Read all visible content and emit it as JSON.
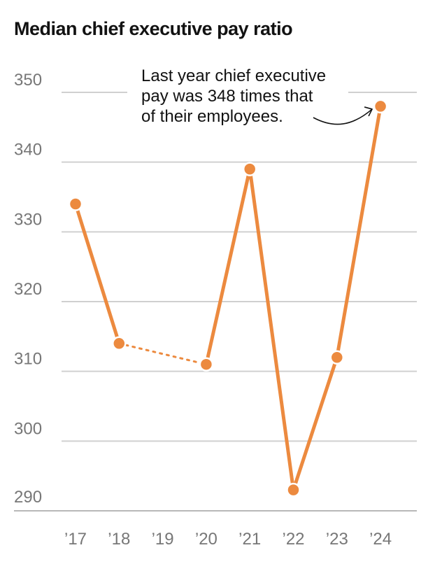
{
  "chart_data": {
    "type": "line",
    "title": "Median chief executive pay ratio",
    "xlabel": "",
    "ylabel": "",
    "categories": [
      "’17",
      "’18",
      "’19",
      "’20",
      "’21",
      "’22",
      "’23",
      "’24"
    ],
    "series": [
      {
        "values": [
          334,
          314,
          null,
          311,
          339,
          293,
          312,
          348
        ],
        "color": "#ec8a3f"
      }
    ],
    "gap_bridge": {
      "from": "’18",
      "to": "’20",
      "style": "dotted"
    },
    "ylim": [
      290,
      350
    ],
    "yticks": [
      290,
      300,
      310,
      320,
      330,
      340,
      350
    ],
    "grid": true,
    "annotation": {
      "lines": [
        "Last year chief executive",
        "pay was 348 times that",
        "of their employees."
      ],
      "target": "’24"
    }
  }
}
